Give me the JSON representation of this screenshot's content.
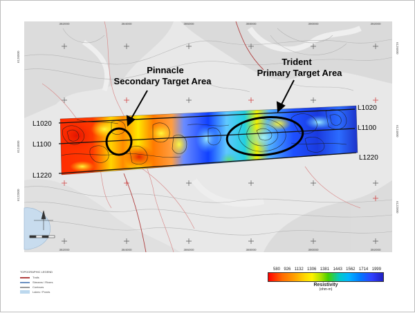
{
  "annotations": {
    "pinnacle_title": "Pinnacle",
    "pinnacle_sub": "Secondary Target Area",
    "trident_title": "Trident",
    "trident_sub": "Primary Target Area"
  },
  "survey_lines": [
    {
      "label_left": "L1020",
      "label_right": "L1020"
    },
    {
      "label_left": "L1100",
      "label_right": "L1100"
    },
    {
      "label_left": "L1220",
      "label_right": "L1220"
    }
  ],
  "grid_labels": {
    "bottom": [
      "382000",
      "384000",
      "386000",
      "388000",
      "390000",
      "392000",
      "394000"
    ],
    "top": [
      "382000",
      "384000",
      "386000",
      "388000",
      "390000",
      "392000",
      "394000"
    ],
    "left": [
      "6122000",
      "6124000",
      "6126000"
    ],
    "right": [
      "6126000",
      "6124000",
      "6122000"
    ]
  },
  "legend": {
    "title": "TOPOGRAPHIC LEGEND",
    "items": [
      {
        "label": "Trails",
        "color": "#b04040"
      },
      {
        "label": "Streams / Rivers",
        "color": "#6a8fc0"
      },
      {
        "label": "Contours",
        "color": "#999999"
      },
      {
        "label": "Lakes / Ponds",
        "color": "#bcd8ee"
      }
    ]
  },
  "colorbar": {
    "ticks": [
      "580",
      "926",
      "1132",
      "1306",
      "1381",
      "1443",
      "1562",
      "1714",
      "1999"
    ],
    "label": "Resistivity",
    "unit": "(ohm-m)"
  },
  "colors": {
    "map_background": "#e6e6e6",
    "annotation": "#000000"
  }
}
